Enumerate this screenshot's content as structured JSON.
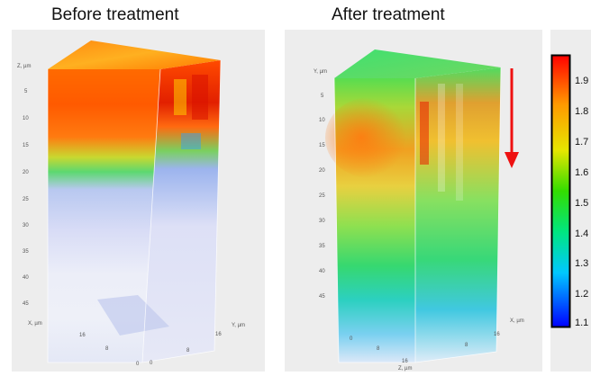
{
  "titles": {
    "before": "Before treatment",
    "after": "After treatment"
  },
  "left_plot": {
    "vertical_axis_label": "Z, µm",
    "vertical_ticks": [
      "5",
      "10",
      "15",
      "20",
      "25",
      "30",
      "35",
      "40",
      "45"
    ],
    "x_axis_label": "X, µm",
    "y_axis_label": "Y, µm",
    "x_ticks": [
      "16",
      "8",
      "0"
    ],
    "y_ticks": [
      "0",
      "8",
      "16"
    ]
  },
  "right_plot": {
    "vertical_axis_label": "Y, µm",
    "vertical_ticks": [
      "5",
      "10",
      "15",
      "20",
      "25",
      "30",
      "35",
      "40",
      "45"
    ],
    "x_axis_label": "X, µm",
    "z_axis_label": "Z, µm",
    "bottom_ticks": [
      "0",
      "8",
      "16"
    ],
    "right_ticks": [
      "8",
      "16"
    ]
  },
  "colorbar": {
    "ticks": [
      "1.9",
      "1.8",
      "1.7",
      "1.6",
      "1.5",
      "1.4",
      "1.3",
      "1.2",
      "1.1"
    ],
    "colors": [
      "#0000ff",
      "#00c8ff",
      "#00e680",
      "#33dd00",
      "#e6e600",
      "#ff9900",
      "#ff0000"
    ]
  },
  "arrow_color": "#ee1111"
}
